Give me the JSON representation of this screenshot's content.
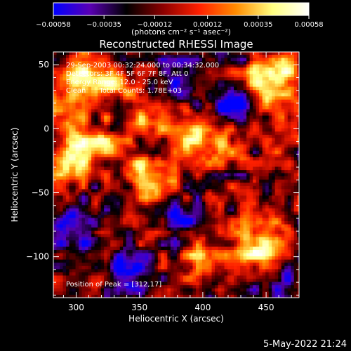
{
  "chart_data": {
    "type": "heatmap",
    "title": "Reconstructed RHESSI Image",
    "xlabel": "Heliocentric X (arcsec)",
    "ylabel": "Heliocentric Y (arcsec)",
    "xlim": [
      282,
      476
    ],
    "ylim": [
      -132,
      60
    ],
    "x_ticks": [
      "300",
      "350",
      "400",
      "450"
    ],
    "x_tick_values": [
      300,
      350,
      400,
      450
    ],
    "y_ticks": [
      "50",
      "0",
      "−50",
      "−100"
    ],
    "y_tick_values": [
      50,
      0,
      -50,
      -100
    ],
    "colorbar": {
      "range": [
        -0.00058,
        0.00058
      ],
      "tick_labels": [
        "−0.00058",
        "−0.00035",
        "−0.00012",
        "0.00012",
        "0.00035",
        "0.00058"
      ],
      "tick_values": [
        -0.00058,
        -0.00035,
        -0.00012,
        0.00012,
        0.00035,
        0.00058
      ],
      "units_label": "(photons cm⁻² s⁻¹ asec⁻²)",
      "colors": [
        "#0000ff",
        "#5a00b4",
        "#000000",
        "#8b0000",
        "#ff2000",
        "#ff8c00",
        "#ffff80",
        "#ffffff"
      ]
    },
    "info_lines": [
      "29-Sep-2003 00:32:24.000 to 00:34:32.000",
      "Detectors: 3F 4F 5F 6F 7F 8F, Att 0",
      "Energy Range: 12.0 - 25.0 keV",
      "Clean      Total Counts: 1.78E+03"
    ],
    "peak_label": "Position of Peak = [312,17]",
    "peak_position": [
      312,
      17
    ],
    "bright_regions": [
      {
        "x": 308,
        "y": 40,
        "level": 0.95
      },
      {
        "x": 330,
        "y": 35,
        "level": 0.85
      },
      {
        "x": 290,
        "y": 10,
        "level": 0.75
      },
      {
        "x": 296,
        "y": -22,
        "level": 0.9
      },
      {
        "x": 318,
        "y": -10,
        "level": 0.7
      },
      {
        "x": 360,
        "y": 5,
        "level": 0.75
      },
      {
        "x": 395,
        "y": -5,
        "level": 0.8
      },
      {
        "x": 420,
        "y": -15,
        "level": 0.7
      },
      {
        "x": 445,
        "y": 35,
        "level": 0.7
      },
      {
        "x": 465,
        "y": 45,
        "level": 0.75
      },
      {
        "x": 465,
        "y": 10,
        "level": 0.7
      },
      {
        "x": 350,
        "y": -30,
        "level": 0.65
      },
      {
        "x": 365,
        "y": -45,
        "level": 0.7
      },
      {
        "x": 440,
        "y": -95,
        "level": 0.9
      },
      {
        "x": 455,
        "y": -80,
        "level": 0.7
      },
      {
        "x": 400,
        "y": -100,
        "level": 0.6
      }
    ],
    "dark_regions": [
      {
        "x": 385,
        "y": 40,
        "level": -0.6
      },
      {
        "x": 300,
        "y": -80,
        "level": -0.7
      },
      {
        "x": 340,
        "y": -110,
        "level": -0.8
      },
      {
        "x": 420,
        "y": 20,
        "level": -0.75
      },
      {
        "x": 380,
        "y": -70,
        "level": -0.6
      },
      {
        "x": 460,
        "y": -120,
        "level": -0.6
      }
    ]
  },
  "footer": {
    "timestamp": "5-May-2022 21:24"
  }
}
